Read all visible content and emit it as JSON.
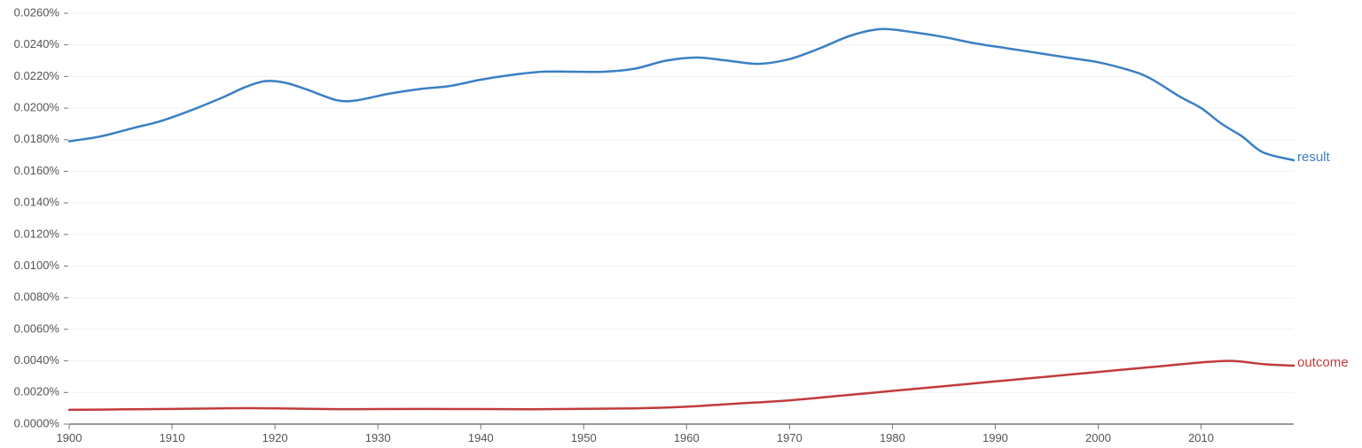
{
  "chart_data": {
    "type": "line",
    "title": "",
    "xlabel": "",
    "ylabel": "",
    "xlim": [
      1900,
      2019
    ],
    "ylim": [
      0,
      0.026
    ],
    "grid": true,
    "legend": "inline-right",
    "y_ticks": [
      0,
      0.002,
      0.004,
      0.006,
      0.008,
      0.01,
      0.012,
      0.014,
      0.016,
      0.018,
      0.02,
      0.022,
      0.024,
      0.026
    ],
    "y_tick_labels": [
      "0.0000%",
      "0.0020%",
      "0.0040%",
      "0.0060%",
      "0.0080%",
      "0.0100%",
      "0.0120%",
      "0.0140%",
      "0.0160%",
      "0.0180%",
      "0.0200%",
      "0.0220%",
      "0.0240%",
      "0.0260%"
    ],
    "x_ticks": [
      1900,
      1910,
      1920,
      1930,
      1940,
      1950,
      1960,
      1970,
      1980,
      1990,
      2000,
      2010
    ],
    "x_tick_labels": [
      "1900",
      "1910",
      "1920",
      "1930",
      "1940",
      "1950",
      "1960",
      "1970",
      "1980",
      "1990",
      "2000",
      "2010"
    ],
    "series": [
      {
        "name": "result",
        "color": "#3b7fc4",
        "x": [
          1900,
          1903,
          1906,
          1909,
          1912,
          1915,
          1917,
          1919,
          1921,
          1923,
          1926,
          1928,
          1931,
          1934,
          1937,
          1940,
          1943,
          1946,
          1949,
          1952,
          1955,
          1958,
          1961,
          1964,
          1967,
          1970,
          1973,
          1976,
          1979,
          1982,
          1985,
          1988,
          1991,
          1994,
          1997,
          2000,
          2003,
          2005,
          2008,
          2010,
          2012,
          2014,
          2016,
          2019
        ],
        "values": [
          0.0179,
          0.0182,
          0.0187,
          0.0192,
          0.0199,
          0.0207,
          0.0213,
          0.0217,
          0.0216,
          0.0212,
          0.0205,
          0.0205,
          0.0209,
          0.0212,
          0.0214,
          0.0218,
          0.0221,
          0.0223,
          0.0223,
          0.0223,
          0.0225,
          0.023,
          0.0232,
          0.023,
          0.0228,
          0.0231,
          0.0238,
          0.0246,
          0.025,
          0.0248,
          0.0245,
          0.0241,
          0.0238,
          0.0235,
          0.0232,
          0.0229,
          0.0224,
          0.0219,
          0.0207,
          0.02,
          0.019,
          0.0182,
          0.0172,
          0.0167
        ]
      },
      {
        "name": "outcome",
        "color": "#c23b3b",
        "x": [
          1900,
          1905,
          1910,
          1915,
          1920,
          1925,
          1930,
          1935,
          1940,
          1945,
          1950,
          1955,
          1960,
          1965,
          1970,
          1975,
          1980,
          1985,
          1990,
          1995,
          2000,
          2005,
          2010,
          2013,
          2016,
          2019
        ],
        "values": [
          0.0009,
          0.00093,
          0.00096,
          0.001,
          0.001,
          0.00095,
          0.00095,
          0.00096,
          0.00095,
          0.00094,
          0.00097,
          0.001,
          0.0011,
          0.0013,
          0.0015,
          0.0018,
          0.0021,
          0.0024,
          0.0027,
          0.003,
          0.0033,
          0.0036,
          0.0039,
          0.004,
          0.0038,
          0.0037
        ]
      }
    ]
  }
}
